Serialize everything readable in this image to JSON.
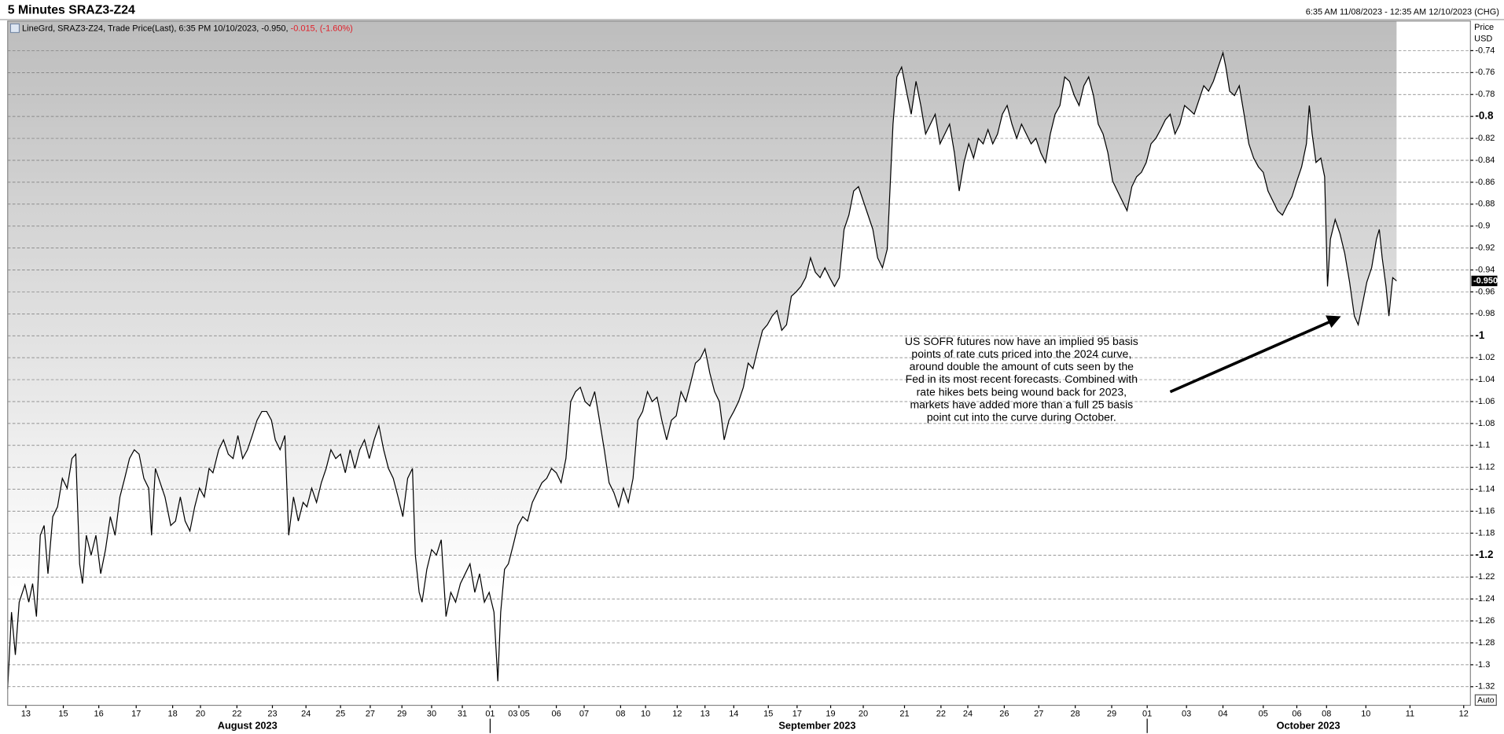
{
  "header": {
    "title": "5 Minutes SRAZ3-Z24",
    "range": "6:35 AM 11/08/2023 - 12:35 AM 12/10/2023 (CHG)"
  },
  "chart_data": {
    "type": "line",
    "legend": {
      "text": "LineGrd, SRAZ3-Z24, Trade Price(Last), 6:35 PM 10/10/2023, -0.950,",
      "change": "-0.015, (-1.60%)"
    },
    "axis_title": [
      "Price",
      "USD"
    ],
    "months": [
      "August 2023",
      "September 2023",
      "October 2023"
    ],
    "annotation": [
      "US SOFR futures now have an implied 95 basis",
      "points of rate cuts priced into the 2024 curve,",
      "around double the amount of cuts seen by the",
      "Fed in its most recent forecasts. Combined with",
      "rate hikes bets being wound back for 2023,",
      "markets have added more than a full 25 basis",
      "point cut into the curve during October."
    ],
    "auto_button": "Auto",
    "last_price": {
      "value": -0.95,
      "label": "-0.950"
    },
    "xlim": [
      8,
      1533
    ],
    "ylim": [
      -1.337,
      -0.713
    ],
    "grid": true,
    "xticks": [
      {
        "value": 27,
        "label": "13"
      },
      {
        "value": 66,
        "label": "15"
      },
      {
        "value": 103,
        "label": "16"
      },
      {
        "value": 142,
        "label": "17"
      },
      {
        "value": 180,
        "label": "18"
      },
      {
        "value": 209,
        "label": "20"
      },
      {
        "value": 247,
        "label": "22"
      },
      {
        "value": 284,
        "label": "23"
      },
      {
        "value": 319,
        "label": "24"
      },
      {
        "value": 355,
        "label": "25"
      },
      {
        "value": 386,
        "label": "27"
      },
      {
        "value": 419,
        "label": "29"
      },
      {
        "value": 450,
        "label": "30"
      },
      {
        "value": 482,
        "label": "31"
      },
      {
        "value": 511,
        "label": "01"
      },
      {
        "value": 541,
        "label": "03 05"
      },
      {
        "value": 580,
        "label": "06"
      },
      {
        "value": 609,
        "label": "07"
      },
      {
        "value": 647,
        "label": "08"
      },
      {
        "value": 673,
        "label": "10"
      },
      {
        "value": 706,
        "label": "12"
      },
      {
        "value": 735,
        "label": "13"
      },
      {
        "value": 765,
        "label": "14"
      },
      {
        "value": 801,
        "label": "15"
      },
      {
        "value": 831,
        "label": "17"
      },
      {
        "value": 866,
        "label": "19"
      },
      {
        "value": 900,
        "label": "20"
      },
      {
        "value": 943,
        "label": "21"
      },
      {
        "value": 981,
        "label": "22"
      },
      {
        "value": 1009,
        "label": "24"
      },
      {
        "value": 1047,
        "label": "26"
      },
      {
        "value": 1083,
        "label": "27"
      },
      {
        "value": 1121,
        "label": "28"
      },
      {
        "value": 1159,
        "label": "29"
      },
      {
        "value": 1196,
        "label": "01"
      },
      {
        "value": 1237,
        "label": "03"
      },
      {
        "value": 1275,
        "label": "04"
      },
      {
        "value": 1317,
        "label": "05"
      },
      {
        "value": 1352,
        "label": "06"
      },
      {
        "value": 1383,
        "label": "08"
      },
      {
        "value": 1424,
        "label": "10"
      },
      {
        "value": 1470,
        "label": "11"
      },
      {
        "value": 1526,
        "label": "12"
      }
    ],
    "yticks": [
      -0.74,
      -0.76,
      -0.78,
      -0.8,
      -0.82,
      -0.84,
      -0.86,
      -0.88,
      -0.9,
      -0.92,
      -0.94,
      -0.96,
      -0.98,
      -1,
      -1.02,
      -1.04,
      -1.06,
      -1.08,
      -1.1,
      -1.12,
      -1.14,
      -1.16,
      -1.18,
      -1.2,
      -1.22,
      -1.24,
      -1.26,
      -1.28,
      -1.3,
      -1.32
    ],
    "x": [
      8,
      12,
      16,
      20,
      26,
      30,
      34,
      38,
      42,
      46,
      50,
      55,
      60,
      65,
      70,
      75,
      79,
      83,
      86,
      90,
      95,
      100,
      105,
      110,
      115,
      120,
      125,
      130,
      135,
      140,
      145,
      150,
      155,
      158,
      162,
      167,
      172,
      178,
      183,
      188,
      193,
      198,
      203,
      208,
      213,
      218,
      222,
      228,
      233,
      238,
      243,
      248,
      253,
      258,
      263,
      268,
      273,
      278,
      283,
      287,
      292,
      297,
      301,
      306,
      311,
      316,
      320,
      325,
      330,
      335,
      340,
      345,
      350,
      355,
      360,
      365,
      370,
      375,
      380,
      385,
      390,
      395,
      400,
      405,
      410,
      415,
      420,
      425,
      430,
      433,
      437,
      440,
      445,
      450,
      455,
      460,
      465,
      470,
      475,
      480,
      485,
      490,
      495,
      500,
      505,
      510,
      515,
      519,
      522,
      526,
      530,
      535,
      540,
      545,
      550,
      555,
      560,
      565,
      570,
      575,
      580,
      585,
      590,
      595,
      600,
      605,
      610,
      615,
      620,
      625,
      630,
      635,
      640,
      645,
      650,
      655,
      660,
      665,
      670,
      675,
      680,
      685,
      690,
      695,
      700,
      705,
      710,
      715,
      720,
      725,
      730,
      735,
      740,
      745,
      750,
      755,
      760,
      765,
      770,
      775,
      780,
      785,
      790,
      795,
      800,
      805,
      810,
      815,
      820,
      825,
      830,
      835,
      840,
      845,
      850,
      855,
      860,
      865,
      870,
      875,
      880,
      885,
      890,
      895,
      900,
      905,
      910,
      915,
      920,
      925,
      928,
      931,
      935,
      940,
      945,
      950,
      955,
      960,
      965,
      970,
      975,
      980,
      985,
      990,
      995,
      1000,
      1005,
      1010,
      1015,
      1020,
      1025,
      1030,
      1035,
      1040,
      1045,
      1050,
      1055,
      1060,
      1065,
      1070,
      1075,
      1080,
      1085,
      1090,
      1095,
      1100,
      1105,
      1110,
      1115,
      1120,
      1125,
      1130,
      1135,
      1140,
      1145,
      1150,
      1155,
      1160,
      1165,
      1170,
      1175,
      1180,
      1185,
      1190,
      1195,
      1200,
      1205,
      1210,
      1215,
      1220,
      1225,
      1230,
      1235,
      1240,
      1245,
      1250,
      1255,
      1260,
      1265,
      1270,
      1275,
      1278,
      1282,
      1287,
      1292,
      1297,
      1302,
      1307,
      1312,
      1317,
      1322,
      1327,
      1332,
      1337,
      1342,
      1347,
      1352,
      1357,
      1362,
      1365,
      1368,
      1372,
      1377,
      1381,
      1384,
      1387,
      1392,
      1397,
      1402,
      1407,
      1412,
      1416,
      1420,
      1425,
      1430,
      1435,
      1438,
      1441,
      1445,
      1448,
      1452,
      1456
    ],
    "series": [
      {
        "name": "SRAZ3-Z24",
        "color": "#000000",
        "values": [
          -1.322,
          -1.252,
          -1.291,
          -1.243,
          -1.227,
          -1.243,
          -1.226,
          -1.256,
          -1.182,
          -1.173,
          -1.217,
          -1.165,
          -1.156,
          -1.13,
          -1.139,
          -1.112,
          -1.108,
          -1.208,
          -1.226,
          -1.182,
          -1.2,
          -1.182,
          -1.217,
          -1.195,
          -1.165,
          -1.182,
          -1.147,
          -1.13,
          -1.112,
          -1.104,
          -1.108,
          -1.13,
          -1.139,
          -1.182,
          -1.121,
          -1.134,
          -1.147,
          -1.173,
          -1.169,
          -1.147,
          -1.169,
          -1.178,
          -1.156,
          -1.139,
          -1.147,
          -1.121,
          -1.125,
          -1.104,
          -1.095,
          -1.108,
          -1.112,
          -1.091,
          -1.112,
          -1.104,
          -1.091,
          -1.077,
          -1.069,
          -1.069,
          -1.077,
          -1.095,
          -1.104,
          -1.091,
          -1.182,
          -1.147,
          -1.169,
          -1.152,
          -1.156,
          -1.139,
          -1.152,
          -1.134,
          -1.121,
          -1.104,
          -1.112,
          -1.108,
          -1.125,
          -1.104,
          -1.121,
          -1.104,
          -1.095,
          -1.112,
          -1.095,
          -1.082,
          -1.104,
          -1.121,
          -1.13,
          -1.147,
          -1.165,
          -1.13,
          -1.121,
          -1.2,
          -1.234,
          -1.243,
          -1.213,
          -1.195,
          -1.2,
          -1.186,
          -1.256,
          -1.234,
          -1.243,
          -1.226,
          -1.217,
          -1.208,
          -1.234,
          -1.217,
          -1.243,
          -1.234,
          -1.252,
          -1.315,
          -1.252,
          -1.213,
          -1.208,
          -1.191,
          -1.173,
          -1.165,
          -1.169,
          -1.152,
          -1.143,
          -1.134,
          -1.13,
          -1.121,
          -1.125,
          -1.134,
          -1.112,
          -1.06,
          -1.051,
          -1.047,
          -1.06,
          -1.064,
          -1.051,
          -1.077,
          -1.104,
          -1.134,
          -1.143,
          -1.156,
          -1.139,
          -1.152,
          -1.13,
          -1.077,
          -1.069,
          -1.051,
          -1.06,
          -1.056,
          -1.077,
          -1.095,
          -1.077,
          -1.073,
          -1.051,
          -1.06,
          -1.043,
          -1.025,
          -1.021,
          -1.012,
          -1.034,
          -1.051,
          -1.06,
          -1.095,
          -1.077,
          -1.069,
          -1.06,
          -1.047,
          -1.025,
          -1.03,
          -1.012,
          -0.995,
          -0.99,
          -0.982,
          -0.977,
          -0.995,
          -0.99,
          -0.964,
          -0.96,
          -0.955,
          -0.947,
          -0.929,
          -0.942,
          -0.947,
          -0.938,
          -0.947,
          -0.955,
          -0.947,
          -0.903,
          -0.89,
          -0.868,
          -0.864,
          -0.877,
          -0.89,
          -0.903,
          -0.929,
          -0.938,
          -0.921,
          -0.864,
          -0.807,
          -0.764,
          -0.755,
          -0.777,
          -0.798,
          -0.768,
          -0.79,
          -0.816,
          -0.807,
          -0.798,
          -0.825,
          -0.816,
          -0.807,
          -0.833,
          -0.868,
          -0.842,
          -0.825,
          -0.838,
          -0.82,
          -0.825,
          -0.812,
          -0.825,
          -0.816,
          -0.798,
          -0.79,
          -0.807,
          -0.82,
          -0.807,
          -0.816,
          -0.825,
          -0.82,
          -0.833,
          -0.842,
          -0.816,
          -0.798,
          -0.79,
          -0.764,
          -0.768,
          -0.781,
          -0.79,
          -0.772,
          -0.764,
          -0.781,
          -0.807,
          -0.816,
          -0.833,
          -0.859,
          -0.868,
          -0.877,
          -0.886,
          -0.864,
          -0.855,
          -0.851,
          -0.842,
          -0.825,
          -0.82,
          -0.812,
          -0.803,
          -0.798,
          -0.816,
          -0.807,
          -0.79,
          -0.794,
          -0.798,
          -0.785,
          -0.772,
          -0.777,
          -0.768,
          -0.755,
          -0.742,
          -0.755,
          -0.777,
          -0.781,
          -0.772,
          -0.798,
          -0.825,
          -0.838,
          -0.846,
          -0.851,
          -0.868,
          -0.877,
          -0.886,
          -0.89,
          -0.881,
          -0.873,
          -0.859,
          -0.846,
          -0.825,
          -0.79,
          -0.816,
          -0.842,
          -0.838,
          -0.855,
          -0.955,
          -0.912,
          -0.894,
          -0.907,
          -0.925,
          -0.951,
          -0.982,
          -0.99,
          -0.973,
          -0.951,
          -0.938,
          -0.912,
          -0.903,
          -0.929,
          -0.955,
          -0.982,
          -0.947,
          -0.95
        ]
      }
    ]
  }
}
